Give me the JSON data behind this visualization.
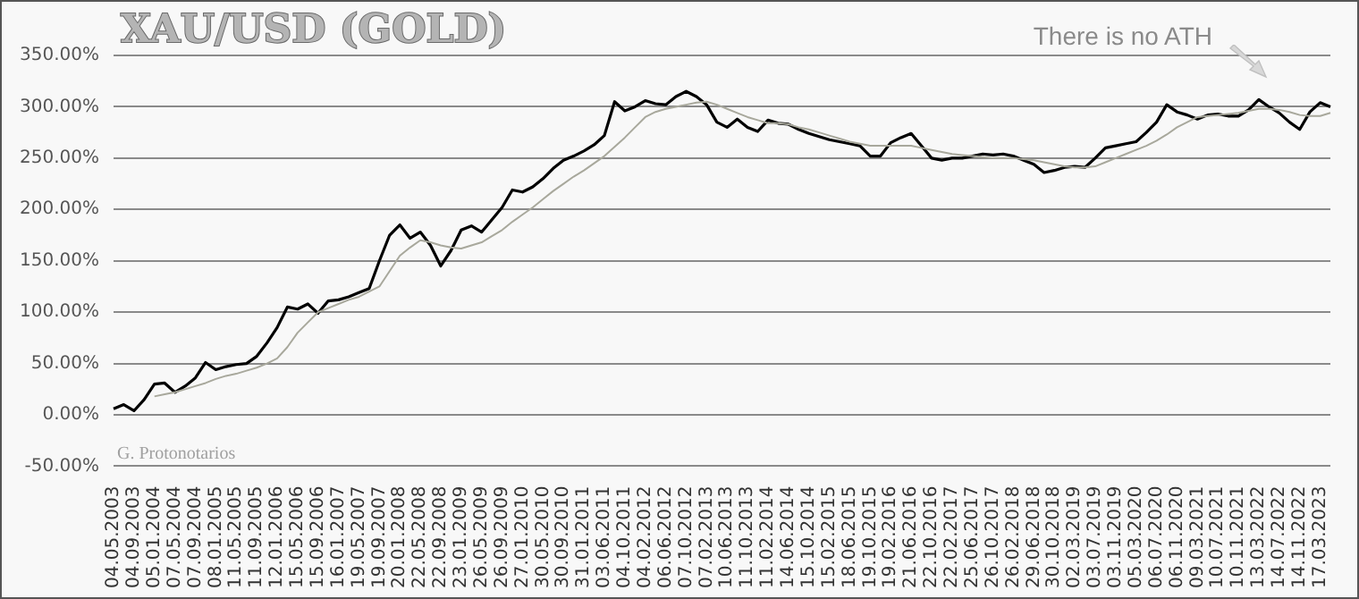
{
  "chart_data": {
    "type": "line",
    "title": "XAU/USD (GOLD)",
    "categories": [
      "04.05.2003",
      null,
      "04.09.2003",
      null,
      "05.01.2004",
      null,
      "07.05.2004",
      null,
      "07.09.2004",
      null,
      "08.01.2005",
      null,
      "11.05.2005",
      null,
      "11.09.2005",
      null,
      "12.01.2006",
      null,
      "15.05.2006",
      null,
      "15.09.2006",
      null,
      "16.01.2007",
      null,
      "19.05.2007",
      null,
      "19.09.2007",
      null,
      "20.01.2008",
      null,
      "22.05.2008",
      null,
      "22.09.2008",
      null,
      "23.01.2009",
      null,
      "26.05.2009",
      null,
      "26.09.2009",
      null,
      "27.01.2010",
      null,
      "30.05.2010",
      null,
      "30.09.2010",
      null,
      "31.01.2011",
      null,
      "03.06.2011",
      null,
      "04.10.2011",
      null,
      "04.02.2012",
      null,
      "06.06.2012",
      null,
      "07.10.2012",
      null,
      "07.02.2013",
      null,
      "10.06.2013",
      null,
      "11.10.2013",
      null,
      "11.02.2014",
      null,
      "14.06.2014",
      null,
      "15.10.2014",
      null,
      "15.02.2015",
      null,
      "18.06.2015",
      null,
      "19.10.2015",
      null,
      "19.02.2016",
      null,
      "21.06.2016",
      null,
      "22.10.2016",
      null,
      "22.02.2017",
      null,
      "25.06.2017",
      null,
      "26.10.2017",
      null,
      "26.02.2018",
      null,
      "29.06.2018",
      null,
      "30.10.2018",
      null,
      "02.03.2019",
      null,
      "03.07.2019",
      null,
      "03.11.2019",
      null,
      "05.03.2020",
      null,
      "06.07.2020",
      null,
      "06.11.2020",
      null,
      "09.03.2021",
      null,
      "10.07.2021",
      null,
      "10.11.2021",
      null,
      "13.03.2022",
      null,
      "14.07.2022",
      null,
      "14.11.2022",
      null,
      "17.03.2023",
      null
    ],
    "series": [
      {
        "color": "#000000",
        "values": [
          6,
          10,
          4,
          15,
          30,
          31,
          22,
          28,
          36,
          51,
          44,
          47,
          49,
          50,
          57,
          70,
          85,
          105,
          103,
          108,
          99,
          111,
          112,
          115,
          119,
          123,
          150,
          175,
          185,
          172,
          178,
          165,
          145,
          160,
          180,
          184,
          178,
          190,
          202,
          219,
          217,
          222,
          230,
          240,
          248,
          252,
          257,
          263,
          272,
          305,
          296,
          300,
          306,
          303,
          302,
          310,
          315,
          310,
          302,
          285,
          280,
          288,
          280,
          276,
          287,
          284,
          283,
          278,
          274,
          271,
          268,
          266,
          264,
          262,
          252,
          252,
          265,
          270,
          274,
          262,
          250,
          248,
          250,
          250,
          252,
          254,
          253,
          254,
          252,
          248,
          244,
          236,
          238,
          241,
          242,
          241,
          250,
          260,
          262,
          264,
          266,
          275,
          285,
          302,
          295,
          292,
          288,
          292,
          293,
          291,
          291,
          297,
          307,
          300,
          294,
          285,
          278,
          295,
          304,
          300
        ]
      },
      {
        "color": "#a8a89c",
        "values": [
          null,
          null,
          null,
          null,
          18,
          20,
          22,
          25,
          28,
          31,
          35,
          38,
          40,
          43,
          46,
          50,
          55,
          66,
          80,
          90,
          100,
          104,
          108,
          112,
          115,
          120,
          125,
          140,
          155,
          163,
          170,
          168,
          165,
          163,
          162,
          165,
          168,
          174,
          180,
          188,
          195,
          202,
          210,
          218,
          225,
          232,
          238,
          245,
          252,
          261,
          270,
          280,
          290,
          295,
          298,
          300,
          302,
          304,
          305,
          302,
          298,
          294,
          290,
          287,
          284,
          284,
          283,
          280,
          278,
          275,
          272,
          269,
          266,
          264,
          262,
          262,
          262,
          262,
          262,
          260,
          258,
          256,
          254,
          253,
          252,
          251,
          250,
          250,
          250,
          249,
          248,
          246,
          244,
          242,
          241,
          241,
          242,
          246,
          250,
          254,
          258,
          262,
          267,
          273,
          280,
          285,
          290,
          291,
          292,
          293,
          294,
          296,
          298,
          298,
          297,
          295,
          292,
          291,
          291,
          294
        ]
      }
    ],
    "ylim": [
      -50,
      350
    ],
    "yticks": [
      {
        "value": -50,
        "label": "-50.00%"
      },
      {
        "value": 0,
        "label": "0.00%"
      },
      {
        "value": 50,
        "label": "50.00%"
      },
      {
        "value": 100,
        "label": "100.00%"
      },
      {
        "value": 150,
        "label": "150.00%"
      },
      {
        "value": 200,
        "label": "200.00%"
      },
      {
        "value": 250,
        "label": "250.00%"
      },
      {
        "value": 300,
        "label": "300.00%"
      },
      {
        "value": 350,
        "label": "350.00%"
      }
    ],
    "grid": "y",
    "legend": false,
    "annotations": [
      "There is no ATH",
      "G. Protonotarios"
    ]
  }
}
